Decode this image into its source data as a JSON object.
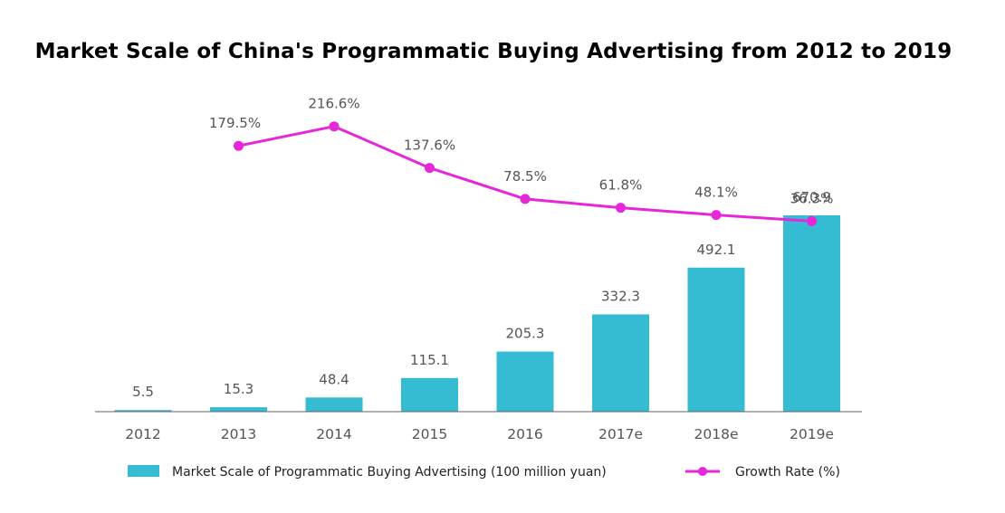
{
  "chart_data": {
    "type": "bar",
    "title": "Market Scale of China's Programmatic Buying Advertising from 2012 to 2019",
    "categories": [
      "2012",
      "2013",
      "2014",
      "2015",
      "2016",
      "2017e",
      "2018e",
      "2019e"
    ],
    "series": [
      {
        "name": "Market Scale of Programmatic Buying Advertising (100 million yuan)",
        "type": "bar",
        "color": "#35bcd3",
        "values": [
          5.5,
          15.3,
          48.4,
          115.1,
          205.3,
          332.3,
          492.1,
          670.9
        ],
        "labels": [
          "5.5",
          "15.3",
          "48.4",
          "115.1",
          "205.3",
          "332.3",
          "492.1",
          "670.9"
        ]
      },
      {
        "name": "Growth Rate (%)",
        "type": "line",
        "color": "#e626d8",
        "values": [
          null,
          179.5,
          216.6,
          137.6,
          78.5,
          61.8,
          48.1,
          36.3
        ],
        "labels": [
          null,
          "179.5%",
          "216.6%",
          "137.6%",
          "78.5%",
          "61.8%",
          "48.1%",
          "36.3%"
        ]
      }
    ],
    "legend_position": "bottom",
    "grid": false
  }
}
